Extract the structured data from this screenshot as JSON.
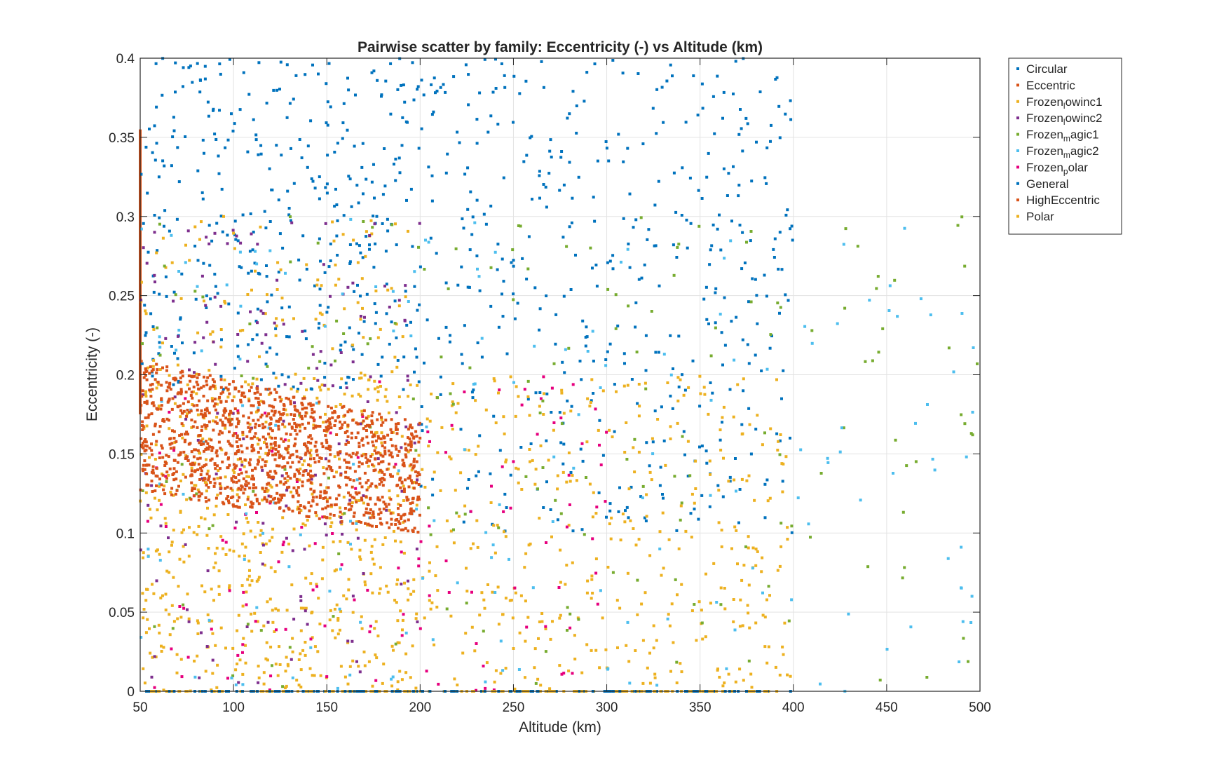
{
  "chart_data": {
    "type": "scatter",
    "title": "Pairwise scatter by family: Eccentricity (-) vs Altitude (km)",
    "xlabel": "Altitude (km)",
    "ylabel": "Eccentricity (-)",
    "xlim": [
      50,
      500
    ],
    "ylim": [
      0,
      0.4
    ],
    "x_ticks": [
      "50",
      "100",
      "150",
      "200",
      "250",
      "300",
      "350",
      "400",
      "450",
      "500"
    ],
    "y_ticks": [
      "0",
      "0.05",
      "0.1",
      "0.15",
      "0.2",
      "0.25",
      "0.3",
      "0.35",
      "0.4"
    ],
    "grid": true,
    "legend_position": "outside-top-right",
    "legend": [
      {
        "label": "Circular",
        "base": "Circular",
        "sub": "",
        "rest": "",
        "color": "#0072BD"
      },
      {
        "label": "Eccentric",
        "base": "Eccentric",
        "sub": "",
        "rest": "",
        "color": "#D95319"
      },
      {
        "label": "Frozenlowinc1",
        "base": "Frozen",
        "sub": "l",
        "rest": "owinc1",
        "color": "#EDB120"
      },
      {
        "label": "Frozenlowinc2",
        "base": "Frozen",
        "sub": "l",
        "rest": "owinc2",
        "color": "#7E2F8E"
      },
      {
        "label": "Frozenmagic1",
        "base": "Frozen",
        "sub": "m",
        "rest": "agic1",
        "color": "#77AC30"
      },
      {
        "label": "Frozenmagic2",
        "base": "Frozen",
        "sub": "m",
        "rest": "agic2",
        "color": "#4DBEEE"
      },
      {
        "label": "Frozenpolar",
        "base": "Frozen",
        "sub": "p",
        "rest": "olar",
        "color": "#E6007E"
      },
      {
        "label": "General",
        "base": "General",
        "sub": "",
        "rest": "",
        "color": "#0072BD"
      },
      {
        "label": "HighEccentric",
        "base": "HighEccentric",
        "sub": "",
        "rest": "",
        "color": "#D95319"
      },
      {
        "label": "Polar",
        "base": "Polar",
        "sub": "",
        "rest": "",
        "color": "#EDB120"
      }
    ],
    "series": [
      {
        "name": "Circular",
        "color": "#0072BD",
        "x_range": [
          50,
          400
        ],
        "y_value": 0,
        "n": 320
      },
      {
        "name": "Eccentric",
        "color": "#D95319",
        "x_value": 50,
        "y_range": [
          0.175,
          0.355
        ]
      },
      {
        "name": "Frozenlowinc1",
        "color": "#EDB120",
        "x_range": [
          50,
          200
        ],
        "y_range": [
          0,
          0.3
        ],
        "n": 380
      },
      {
        "name": "Frozenlowinc2",
        "color": "#7E2F8E",
        "x_range": [
          50,
          200
        ],
        "y_range": [
          0,
          0.3
        ],
        "n": 170
      },
      {
        "name": "Frozenmagic1",
        "color": "#77AC30",
        "x_range": [
          50,
          500
        ],
        "y_range": [
          0,
          0.3
        ],
        "n": 180
      },
      {
        "name": "Frozenmagic2",
        "color": "#4DBEEE",
        "x_range": [
          50,
          500
        ],
        "y_range": [
          0,
          0.3
        ],
        "n": 180
      },
      {
        "name": "Frozenpolar",
        "color": "#E6007E",
        "x_range": [
          50,
          300
        ],
        "y_range": [
          0,
          0.2
        ],
        "n": 130
      },
      {
        "name": "General",
        "color": "#0072BD",
        "x_range": [
          50,
          400
        ],
        "y_range": [
          0.1,
          0.4
        ],
        "n": 820
      },
      {
        "name": "HighEccentric",
        "color": "#D95319",
        "x_range": [
          50,
          200
        ],
        "y_range": [
          0.1,
          0.21
        ],
        "n": 1250
      },
      {
        "name": "Polar",
        "color": "#EDB120",
        "x_range": [
          50,
          400
        ],
        "y_range": [
          0,
          0.2
        ],
        "n": 700
      }
    ]
  }
}
